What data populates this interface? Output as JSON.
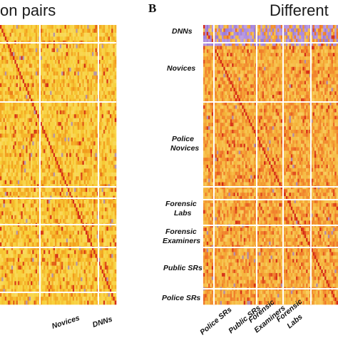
{
  "chart_data": [
    {
      "type": "heatmap",
      "title": "on pairs",
      "panel": "",
      "x_group_labels": [
        "Novices",
        "DNNs"
      ],
      "y_group_labels": [],
      "colors": {
        "high": "#d42a16",
        "mid": "#f29a1c",
        "low": "#f7d03a",
        "outlier": "#9a7ad8"
      }
    },
    {
      "type": "heatmap",
      "title": "Different",
      "panel": "B",
      "y_group_labels": [
        {
          "line1": "DNNs",
          "line2": ""
        },
        {
          "line1": "Novices",
          "line2": ""
        },
        {
          "line1": "Police",
          "line2": "Novices"
        },
        {
          "line1": "Forensic",
          "line2": "Labs"
        },
        {
          "line1": "Forensic",
          "line2": "Examiners"
        },
        {
          "line1": "Public SRs",
          "line2": ""
        },
        {
          "line1": "Police SRs",
          "line2": ""
        }
      ],
      "x_group_labels": [
        {
          "line1": "Police SRs",
          "line2": ""
        },
        {
          "line1": "Public SRs",
          "line2": ""
        },
        {
          "line1": "Forensic",
          "line2": "Examiners"
        },
        {
          "line1": "Forensic",
          "line2": "Labs"
        }
      ],
      "colors": {
        "high": "#d42a16",
        "mid": "#f0782a",
        "low": "#f5b23a",
        "outlier": "#9a7ad8"
      }
    }
  ]
}
